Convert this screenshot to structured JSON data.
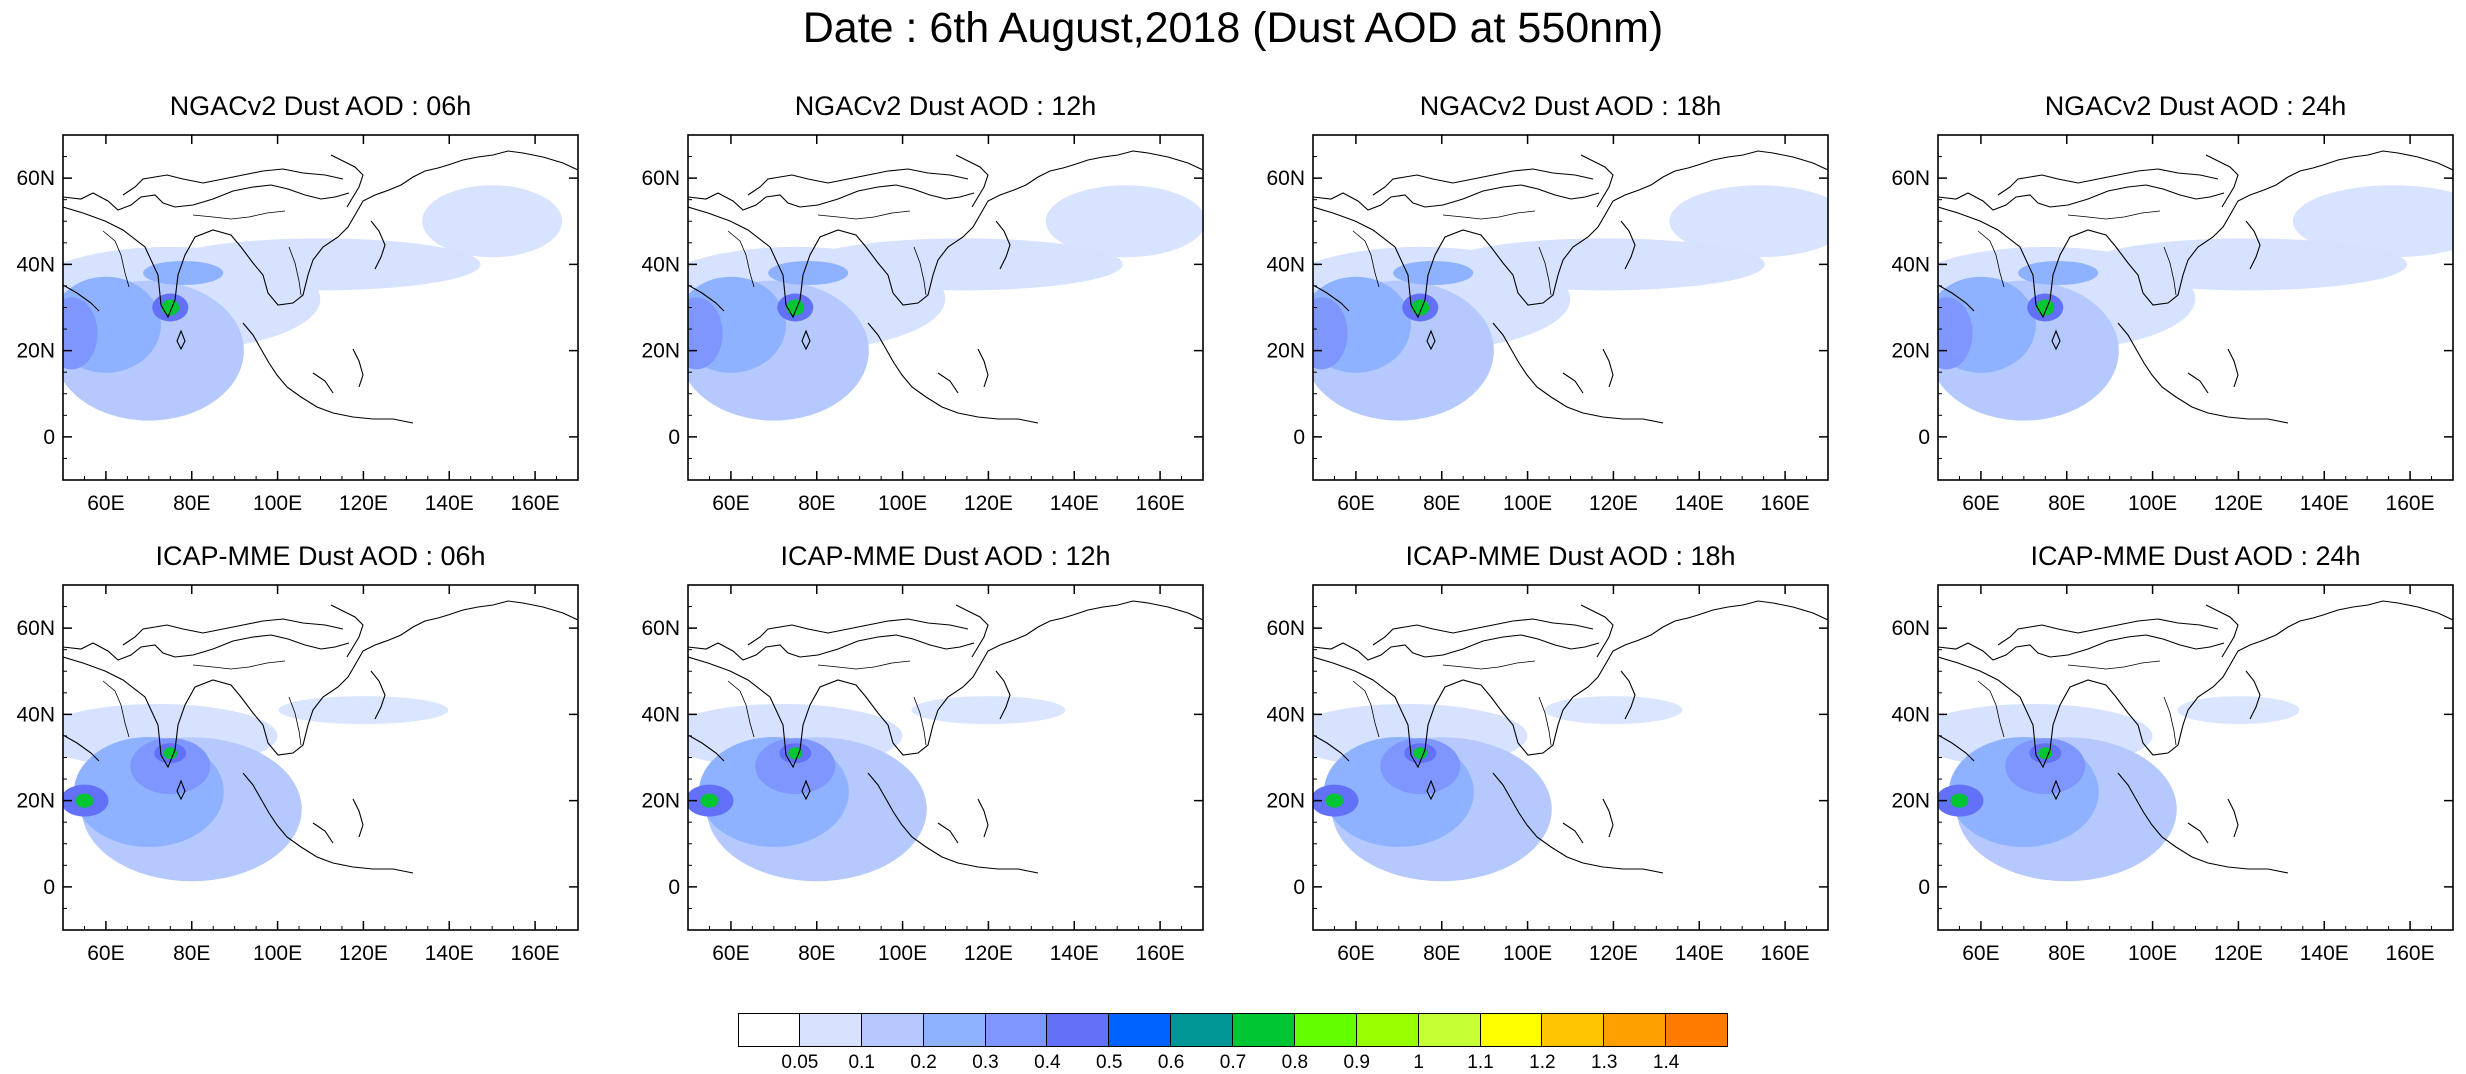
{
  "figure": {
    "title": "Date : 6th August,2018 (Dust AOD at 550nm)"
  },
  "map": {
    "lon_range": [
      50,
      170
    ],
    "lat_range": [
      -10,
      70
    ],
    "x_ticks": [
      "60E",
      "80E",
      "100E",
      "120E",
      "140E",
      "160E"
    ],
    "x_tick_values": [
      60,
      80,
      100,
      120,
      140,
      160
    ],
    "y_ticks": [
      "60N",
      "40N",
      "20N",
      "0"
    ],
    "y_tick_values": [
      60,
      40,
      20,
      0
    ]
  },
  "panels": [
    {
      "title": "NGACv2 Dust AOD : 06h",
      "row": 0,
      "col": 0
    },
    {
      "title": "NGACv2 Dust AOD : 12h",
      "row": 0,
      "col": 1
    },
    {
      "title": "NGACv2 Dust AOD : 18h",
      "row": 0,
      "col": 2
    },
    {
      "title": "NGACv2 Dust AOD : 24h",
      "row": 0,
      "col": 3
    },
    {
      "title": "ICAP-MME Dust AOD : 06h",
      "row": 1,
      "col": 0
    },
    {
      "title": "ICAP-MME Dust AOD : 12h",
      "row": 1,
      "col": 1
    },
    {
      "title": "ICAP-MME Dust AOD : 18h",
      "row": 1,
      "col": 2
    },
    {
      "title": "ICAP-MME Dust AOD : 24h",
      "row": 1,
      "col": 3
    }
  ],
  "colorbar": {
    "labels": [
      "0.05",
      "0.1",
      "0.2",
      "0.3",
      "0.4",
      "0.5",
      "0.6",
      "0.7",
      "0.8",
      "0.9",
      "1",
      "1.1",
      "1.2",
      "1.3",
      "1.4"
    ],
    "colors": [
      "#ffffff",
      "#d6e2ff",
      "#b5c9ff",
      "#8eb2ff",
      "#7f96ff",
      "#6370f8",
      "#0063ff",
      "#009696",
      "#00c633",
      "#63ff00",
      "#96ff00",
      "#c6ff33",
      "#ffff00",
      "#ffc600",
      "#ffa000",
      "#ff7c00",
      "#ff1900"
    ]
  }
}
